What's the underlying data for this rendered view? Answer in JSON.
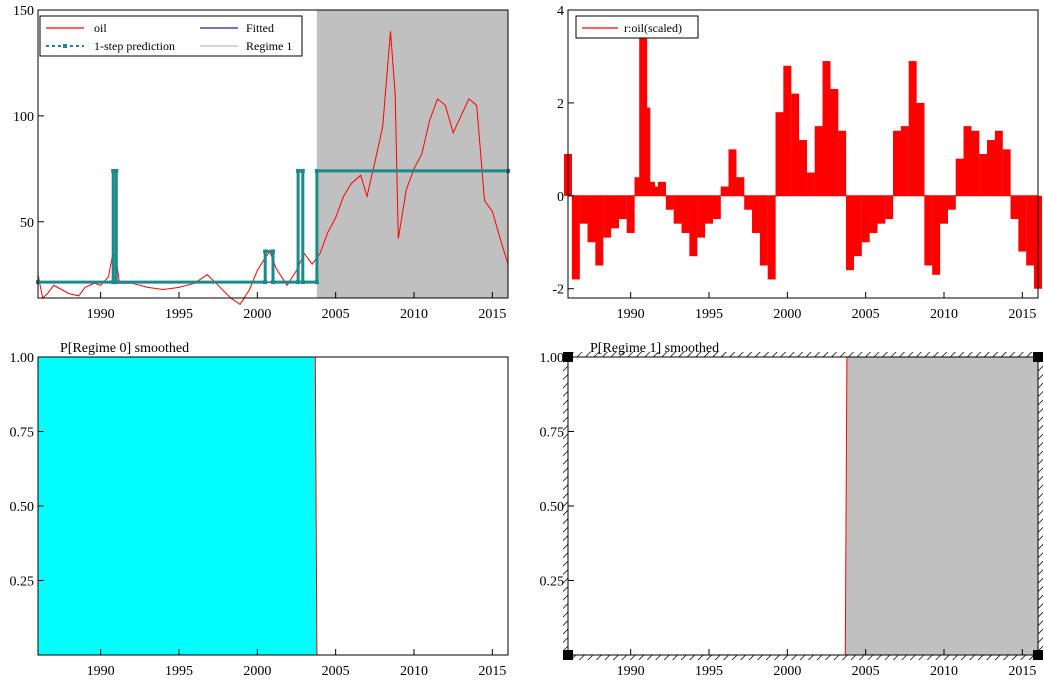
{
  "colors": {
    "oil": "#ff0000",
    "fitted": "#2020a0",
    "prediction": "#1a8a8a",
    "regime_band": "#c0c0c0",
    "regime0_fill": "#00ffff",
    "regime1_fill": "#c0c0c0",
    "axis": "#000000"
  },
  "chart_data": [
    {
      "type": "line",
      "title": "",
      "xlabel": "",
      "ylabel": "",
      "xlim": [
        1986,
        2016
      ],
      "ylim": [
        14,
        150
      ],
      "x_ticks": [
        1990,
        1995,
        2000,
        2005,
        2010,
        2015
      ],
      "y_ticks": [
        50,
        100,
        150
      ],
      "legend": {
        "placement": "top-left",
        "entries": [
          "oil",
          "Fitted",
          "1-step prediction",
          "Regime 1"
        ]
      },
      "regime1_shading": {
        "from": 2003.8,
        "to": 2016
      },
      "series": [
        {
          "name": "oil",
          "x": [
            1986.0,
            1986.3,
            1986.6,
            1987.0,
            1987.5,
            1988.0,
            1988.6,
            1989.0,
            1989.6,
            1990.0,
            1990.5,
            1990.8,
            1991.0,
            1991.2,
            1991.6,
            1992.0,
            1993.0,
            1994.0,
            1995.0,
            1996.0,
            1996.8,
            1997.5,
            1998.3,
            1998.9,
            1999.5,
            2000.0,
            2000.5,
            2000.8,
            2001.2,
            2001.9,
            2002.5,
            2003.0,
            2003.5,
            2004.0,
            2004.5,
            2005.0,
            2005.5,
            2006.0,
            2006.6,
            2007.0,
            2007.5,
            2008.0,
            2008.5,
            2008.8,
            2009.0,
            2009.5,
            2010.0,
            2010.5,
            2011.0,
            2011.5,
            2012.0,
            2012.5,
            2013.0,
            2013.5,
            2014.0,
            2014.5,
            2015.0,
            2015.5,
            2016.0
          ],
          "y": [
            25,
            14,
            16,
            20,
            18,
            16,
            15,
            19,
            21,
            20,
            24,
            36,
            32,
            21,
            21,
            21,
            19,
            18,
            19,
            21,
            25,
            20,
            14,
            11,
            18,
            27,
            33,
            36,
            28,
            20,
            27,
            35,
            30,
            35,
            45,
            52,
            62,
            68,
            72,
            62,
            78,
            95,
            140,
            110,
            42,
            65,
            75,
            82,
            98,
            108,
            105,
            92,
            100,
            108,
            105,
            60,
            55,
            42,
            30
          ]
        },
        {
          "name": "Fitted",
          "x": [
            1986.0,
            2003.8,
            2003.8,
            2016.0
          ],
          "y": [
            21.5,
            21.5,
            74,
            74
          ]
        },
        {
          "name": "1-step prediction",
          "x": [
            1986.0,
            1990.8,
            1990.8,
            1991.0,
            1991.0,
            2000.5,
            2000.5,
            2001.0,
            2001.0,
            2002.6,
            2002.6,
            2002.9,
            2002.9,
            2003.8,
            2003.8,
            2016.0
          ],
          "y": [
            21.5,
            21.5,
            74,
            74,
            21.5,
            21.5,
            36,
            36,
            21.5,
            21.5,
            74,
            74,
            21.5,
            21.5,
            74,
            74
          ]
        }
      ]
    },
    {
      "type": "bar",
      "title": "",
      "xlabel": "",
      "ylabel": "",
      "xlim": [
        1986,
        2016
      ],
      "ylim": [
        -2.2,
        4
      ],
      "x_ticks": [
        1990,
        1995,
        2000,
        2005,
        2010,
        2015
      ],
      "y_ticks": [
        -2,
        0,
        2,
        4
      ],
      "legend": {
        "placement": "top-left",
        "entries": [
          "r:oil(scaled)"
        ]
      },
      "series": [
        {
          "name": "r:oil(scaled)",
          "x": [
            1986.0,
            1986.5,
            1987.0,
            1987.5,
            1988.0,
            1988.5,
            1989.0,
            1989.5,
            1990.0,
            1990.5,
            1990.8,
            1991.0,
            1991.3,
            1991.6,
            1992.0,
            1992.5,
            1993.0,
            1993.5,
            1994.0,
            1994.5,
            1995.0,
            1995.5,
            1996.0,
            1996.5,
            1997.0,
            1997.5,
            1998.0,
            1998.5,
            1999.0,
            1999.5,
            2000.0,
            2000.5,
            2001.0,
            2001.5,
            2002.0,
            2002.5,
            2003.0,
            2003.5,
            2004.0,
            2004.5,
            2005.0,
            2005.5,
            2006.0,
            2006.5,
            2007.0,
            2007.5,
            2008.0,
            2008.5,
            2009.0,
            2009.5,
            2010.0,
            2010.5,
            2011.0,
            2011.5,
            2012.0,
            2012.5,
            2013.0,
            2013.5,
            2014.0,
            2014.5,
            2015.0,
            2015.5,
            2016.0
          ],
          "y": [
            0.9,
            -1.8,
            -0.6,
            -1.0,
            -1.5,
            -0.9,
            -0.7,
            -0.5,
            -0.8,
            0.4,
            3.6,
            1.9,
            0.3,
            0.2,
            0.3,
            -0.3,
            -0.6,
            -0.8,
            -1.3,
            -0.9,
            -0.6,
            -0.5,
            0.2,
            1.0,
            0.4,
            -0.3,
            -0.8,
            -1.5,
            -1.8,
            1.8,
            2.8,
            2.2,
            1.2,
            0.5,
            1.5,
            2.9,
            2.3,
            1.4,
            -1.6,
            -1.3,
            -1.0,
            -0.8,
            -0.6,
            -0.5,
            1.4,
            1.5,
            2.9,
            2.0,
            -1.5,
            -1.7,
            -0.6,
            -0.3,
            0.8,
            1.5,
            1.4,
            0.9,
            1.2,
            1.4,
            1.0,
            -0.5,
            -1.2,
            -1.5,
            -2.0
          ]
        }
      ]
    },
    {
      "type": "area",
      "title": "P[Regime 0] smoothed",
      "xlabel": "",
      "ylabel": "",
      "xlim": [
        1986,
        2016
      ],
      "ylim": [
        0,
        1
      ],
      "x_ticks": [
        1990,
        1995,
        2000,
        2005,
        2010,
        2015
      ],
      "y_ticks": [
        "0.25",
        "0.50",
        "0.75",
        "1.00"
      ],
      "series": [
        {
          "name": "",
          "x": [
            1986.0,
            2003.7,
            2003.8,
            2016.0
          ],
          "y": [
            1,
            1,
            0,
            0
          ]
        }
      ]
    },
    {
      "type": "area",
      "title": "P[Regime 1] smoothed",
      "xlabel": "",
      "ylabel": "",
      "xlim": [
        1986,
        2016
      ],
      "ylim": [
        0,
        1
      ],
      "x_ticks": [
        1990,
        1995,
        2000,
        2005,
        2010,
        2015
      ],
      "y_ticks": [
        "0.25",
        "0.50",
        "0.75",
        "1.00"
      ],
      "series": [
        {
          "name": "",
          "x": [
            1986.0,
            2003.7,
            2003.8,
            2016.0
          ],
          "y": [
            0,
            0,
            1,
            1
          ]
        }
      ]
    }
  ]
}
